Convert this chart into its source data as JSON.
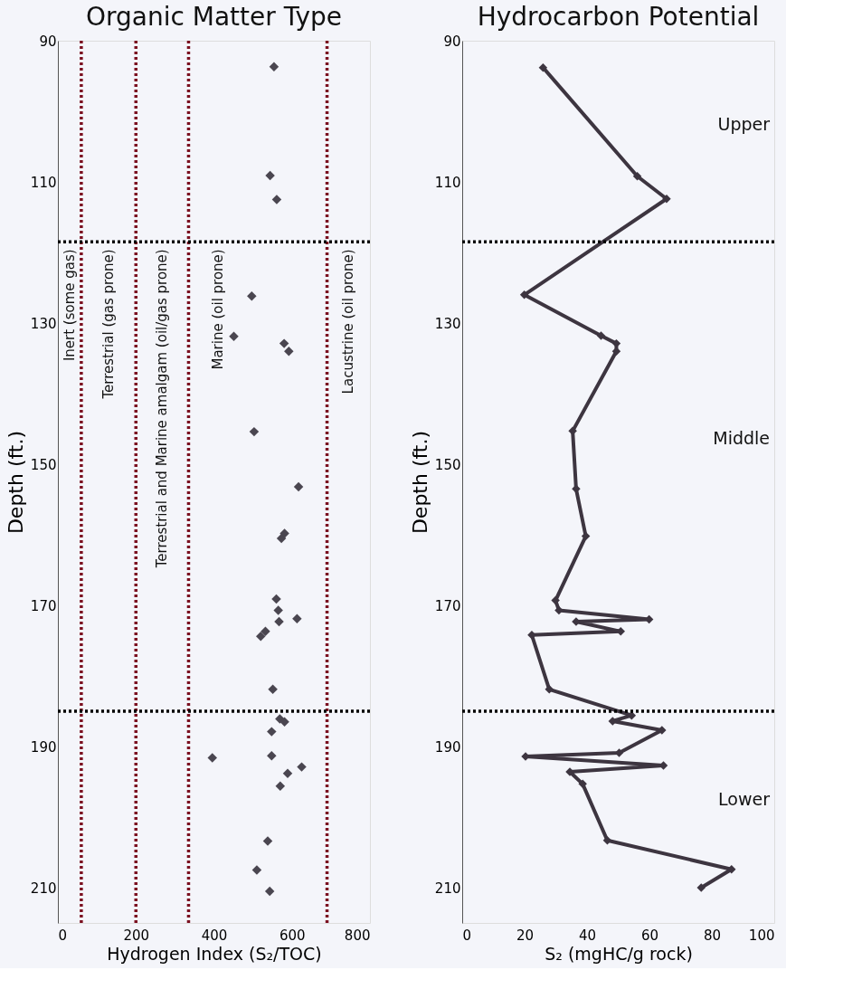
{
  "chart_data": [
    {
      "type": "scatter",
      "title": "Organic Matter Type",
      "xlabel": "Hydrogen Index (S₂/TOC)",
      "ylabel": "Depth (ft.)",
      "xlim": [
        0,
        800
      ],
      "xticks": [
        0,
        200,
        400,
        600,
        800
      ],
      "ylim": [
        215,
        90
      ],
      "yticks": [
        90,
        110,
        130,
        150,
        170,
        190,
        210
      ],
      "grid": false,
      "marker": "diamond",
      "series": [
        {
          "color": "#4a4650",
          "x": [
            554,
            544,
            561,
            497,
            451,
            580,
            592,
            503,
            617,
            581,
            573,
            560,
            565,
            567,
            613,
            532,
            520,
            551,
            569,
            581,
            548,
            548,
            396,
            625,
            589,
            570,
            538,
            510,
            543
          ],
          "values": [
            93.7,
            109.1,
            112.5,
            126.2,
            131.9,
            132.9,
            134.0,
            145.4,
            153.2,
            159.8,
            160.5,
            169.1,
            170.7,
            172.3,
            171.9,
            173.7,
            174.4,
            181.9,
            186.1,
            186.5,
            187.9,
            191.3,
            191.6,
            192.9,
            193.8,
            195.6,
            203.4,
            207.5,
            210.5
          ]
        }
      ],
      "ref_lines": [
        {
          "axis": "x",
          "value": 60,
          "color": "#7b1020",
          "line_style": "dotted"
        },
        {
          "axis": "x",
          "value": 200,
          "color": "#7b1020",
          "line_style": "dotted"
        },
        {
          "axis": "x",
          "value": 335,
          "color": "#7b1020",
          "line_style": "dotted"
        },
        {
          "axis": "x",
          "value": 690,
          "color": "#7b1020",
          "line_style": "dotted"
        },
        {
          "axis": "y",
          "value": 118.5,
          "color": "#000000",
          "line_style": "dotted"
        },
        {
          "axis": "y",
          "value": 185,
          "color": "#000000",
          "line_style": "dotted"
        }
      ],
      "annotations": [
        "Inert (some gas)",
        "Terrestrial (gas prone)",
        "Terrestrial and Marine amalgam (oil/gas prone)",
        "Marine (oil prone)",
        "Lacustrine (oil prone)"
      ]
    },
    {
      "type": "line",
      "title": "Hydrocarbon Potential",
      "xlabel": "S₂ (mgHC/g rock)",
      "ylabel": "Depth (ft.)",
      "xlim": [
        0,
        100
      ],
      "xticks": [
        0,
        20,
        40,
        60,
        80,
        100
      ],
      "ylim": [
        215,
        90
      ],
      "yticks": [
        90,
        110,
        130,
        150,
        170,
        190,
        210
      ],
      "grid": false,
      "marker": "diamond",
      "line_style": "solid",
      "series": [
        {
          "color": "#3d3540",
          "x": [
            25.9,
            56.1,
            65.5,
            19.9,
            44.5,
            49.4,
            49.4,
            35.4,
            36.5,
            39.6,
            29.9,
            31.0,
            59.9,
            36.5,
            50.8,
            22.3,
            27.9,
            54.3,
            48.2,
            64.0,
            50.3,
            20.3,
            64.5,
            34.5,
            38.6,
            46.5,
            86.3,
            76.6
          ],
          "values": [
            93.8,
            109.2,
            112.4,
            126.0,
            131.8,
            132.9,
            134.0,
            145.3,
            153.5,
            160.2,
            169.3,
            170.7,
            172.0,
            172.3,
            173.7,
            174.2,
            181.9,
            185.6,
            186.4,
            187.7,
            190.9,
            191.4,
            192.7,
            193.6,
            195.3,
            203.3,
            207.4,
            210.0
          ]
        }
      ],
      "ref_lines": [
        {
          "axis": "y",
          "value": 118.5,
          "color": "#000000",
          "line_style": "dotted"
        },
        {
          "axis": "y",
          "value": 185,
          "color": "#000000",
          "line_style": "dotted"
        }
      ],
      "annotations": [
        "Upper",
        "Middle",
        "Lower"
      ]
    }
  ]
}
